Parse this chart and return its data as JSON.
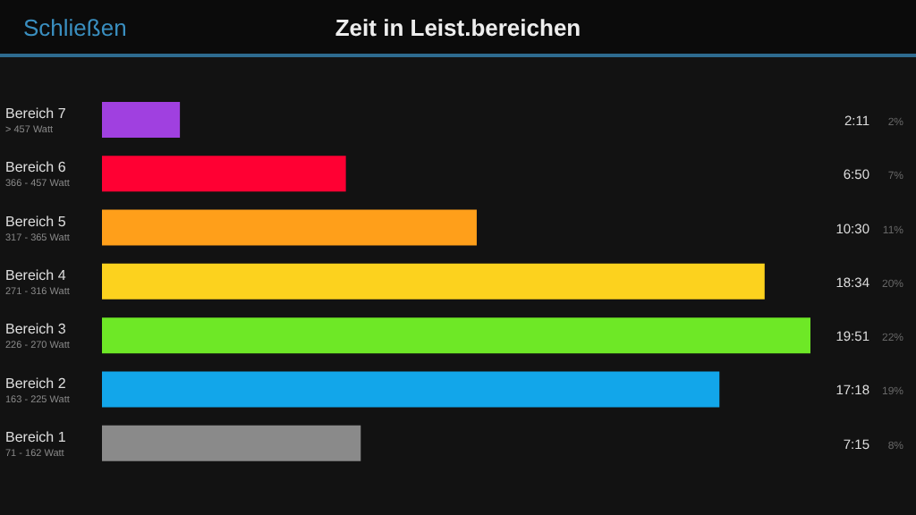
{
  "chart_data": {
    "type": "bar",
    "orientation": "horizontal",
    "title": "Zeit in Leist.bereichen",
    "categories": [
      "Bereich 7\n> 457 Watt",
      "Bereich 6\n366 - 457 Watt",
      "Bereich 5\n317 - 365 Watt",
      "Bereich 4\n271 - 316 Watt",
      "Bereich 3\n226 - 270 Watt",
      "Bereich 2\n163 - 225 Watt",
      "Bereich 1\n71 - 162 Watt"
    ],
    "values": [
      2.1833,
      6.8333,
      10.5,
      18.5667,
      19.85,
      17.3,
      7.25
    ],
    "value_labels": [
      "2:11",
      "6:50",
      "10:30",
      "18:34",
      "19:51",
      "17:18",
      "7:15"
    ],
    "colors": [
      "#a040e0",
      "#ff0033",
      "#ff9f1a",
      "#fcd21e",
      "#6ee826",
      "#12a6ea",
      "#8a8a8a"
    ],
    "annotations": [
      "Schließen",
      "2%",
      "7%",
      "11%",
      "20%",
      "22%",
      "19%",
      "8%"
    ],
    "grid": false,
    "legend": false
  }
}
